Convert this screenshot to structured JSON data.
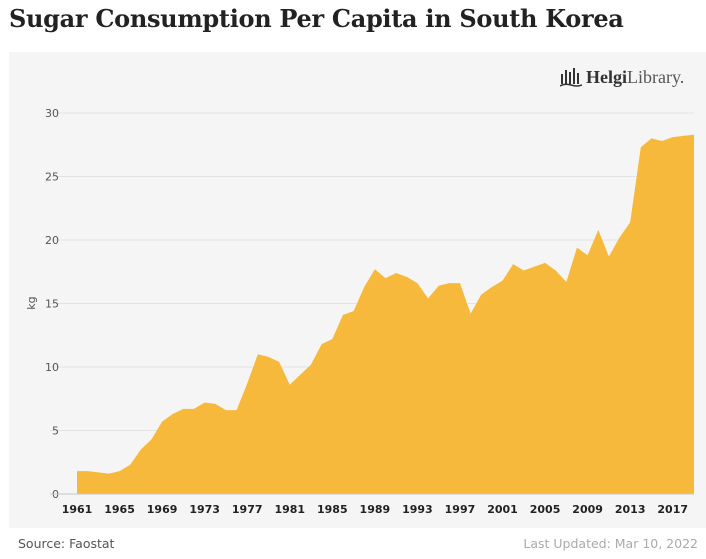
{
  "colors": {
    "area": "#f6b93b",
    "grid": "#e3e3e3",
    "panel": "#f5f5f5"
  },
  "logo": {
    "icon": "skyline-icon",
    "bold": "Helgi",
    "light": "Library."
  },
  "footer": {
    "source": "Source: Faostat",
    "updated": "Last Updated: Mar 10, 2022"
  },
  "chart_data": {
    "type": "area",
    "title": "Sugar Consumption Per Capita in South Korea",
    "xlabel": "",
    "ylabel": "kg",
    "ylim": [
      0,
      30
    ],
    "yticks": [
      "0",
      "5",
      "10",
      "15",
      "20",
      "25",
      "30"
    ],
    "xticks": [
      "1961",
      "1965",
      "1969",
      "1973",
      "1977",
      "1981",
      "1985",
      "1989",
      "1993",
      "1997",
      "2001",
      "2005",
      "2009",
      "2013",
      "2017"
    ],
    "grid": true,
    "x": [
      1961,
      1962,
      1963,
      1964,
      1965,
      1966,
      1967,
      1968,
      1969,
      1970,
      1971,
      1972,
      1973,
      1974,
      1975,
      1976,
      1977,
      1978,
      1979,
      1980,
      1981,
      1982,
      1983,
      1984,
      1985,
      1986,
      1987,
      1988,
      1989,
      1990,
      1991,
      1992,
      1993,
      1994,
      1995,
      1996,
      1997,
      1998,
      1999,
      2000,
      2001,
      2002,
      2003,
      2004,
      2005,
      2006,
      2007,
      2008,
      2009,
      2010,
      2011,
      2012,
      2013,
      2014,
      2015,
      2016,
      2017,
      2018,
      2019
    ],
    "values": [
      1.8,
      1.8,
      1.7,
      1.6,
      1.8,
      2.3,
      3.5,
      4.3,
      5.7,
      6.3,
      6.7,
      6.7,
      7.2,
      7.1,
      6.6,
      6.6,
      8.7,
      11.0,
      10.8,
      10.4,
      8.6,
      9.4,
      10.2,
      11.8,
      12.2,
      14.1,
      14.4,
      16.3,
      17.7,
      17.0,
      17.4,
      17.1,
      16.6,
      15.4,
      16.4,
      16.6,
      16.6,
      14.2,
      15.7,
      16.3,
      16.8,
      18.1,
      17.6,
      17.9,
      18.2,
      17.6,
      16.7,
      19.4,
      18.8,
      20.8,
      18.7,
      20.2,
      21.4,
      27.3,
      28.0,
      27.8,
      28.1,
      28.2,
      28.3
    ]
  }
}
